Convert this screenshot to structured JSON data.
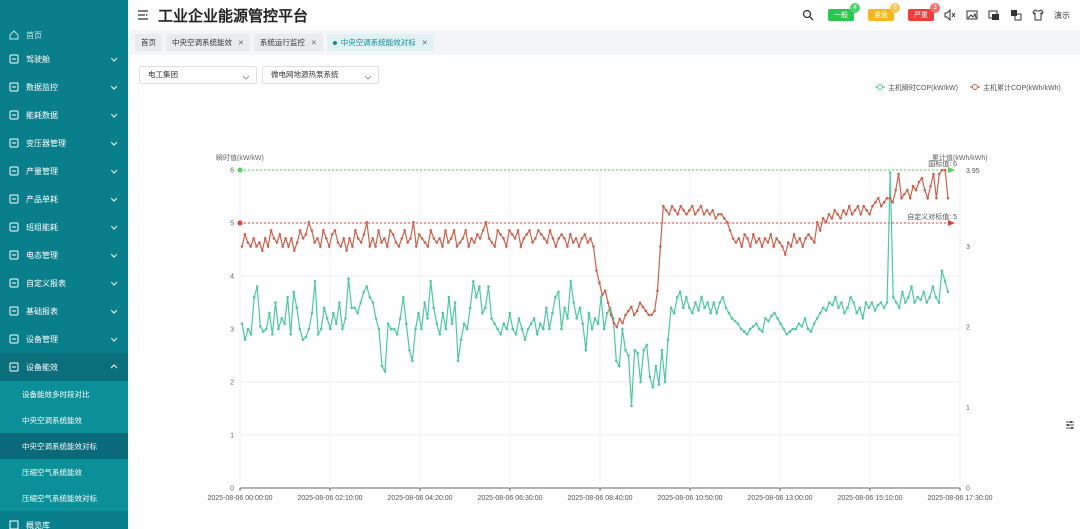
{
  "header": {
    "title": "工业企业能源管控平台",
    "badges": [
      {
        "label": "一般",
        "count": "4",
        "cls": "b-green"
      },
      {
        "label": "紧急",
        "count": "3",
        "cls": "b-yellow"
      },
      {
        "label": "严重",
        "count": "3",
        "cls": "b-red"
      }
    ],
    "demo": "演示"
  },
  "sidebar": {
    "top_partial": "首页",
    "items": [
      {
        "label": "驾驶舱",
        "icon": "monitor-icon"
      },
      {
        "label": "数据监控",
        "icon": "gauge-icon"
      },
      {
        "label": "能耗数据",
        "icon": "chart-icon"
      },
      {
        "label": "变压器管理",
        "icon": "transformer-icon"
      },
      {
        "label": "产量管理",
        "icon": "output-icon"
      },
      {
        "label": "产品单耗",
        "icon": "product-icon"
      },
      {
        "label": "班组能耗",
        "icon": "team-icon"
      },
      {
        "label": "电态管理",
        "icon": "grid-icon"
      },
      {
        "label": "自定义报表",
        "icon": "report-icon"
      },
      {
        "label": "基础报表",
        "icon": "table-icon"
      },
      {
        "label": "设备管理",
        "icon": "device-icon"
      },
      {
        "label": "设备能效",
        "icon": "efficiency-icon"
      }
    ],
    "sub_items": [
      "设备能效多时段对比",
      "中央空调系统能效",
      "中央空调系统能效对标",
      "压缩空气系统能效",
      "压缩空气系统能效对标"
    ],
    "bottom_partial": "概览库"
  },
  "tabs": [
    {
      "label": "首页",
      "closable": false
    },
    {
      "label": "中央空调系统能效",
      "closable": true
    },
    {
      "label": "系统运行监控",
      "closable": true
    },
    {
      "label": "中央空调系统能效对标",
      "closable": true
    }
  ],
  "filters": {
    "group": "电工集团",
    "system": "微电网地源热泵系统"
  },
  "chart_data": {
    "type": "line",
    "ylabel_left": "瞬时值(kW/kW)",
    "ylabel_right": "累计值(kWh/kWh)",
    "y_left_range": [
      0,
      6
    ],
    "y_left_ticks": [
      "0",
      "1",
      "2",
      "3",
      "4",
      "5",
      "6"
    ],
    "y_right_range": [
      0,
      3.95
    ],
    "y_right_ticks": [
      "0",
      "1",
      "2",
      "3"
    ],
    "x_ticks": [
      "2025-08-06 00:00:00",
      "2025-08-06 02:10:00",
      "2025-08-06 04:20:00",
      "2025-08-06 06:30:00",
      "2025-08-06 08:40:00",
      "2025-08-06 10:50:00",
      "2025-08-06 13:00:00",
      "2025-08-06 15:10:00",
      "2025-08-06 17:30:00"
    ],
    "legend": [
      "主机瞬时COP(kW/kW)",
      "主机累计COP(kWh/kWh)"
    ],
    "series_colors": [
      "#4cc9a0",
      "#d0604a"
    ],
    "markline_national": {
      "label": "国标值: 6",
      "value": 6,
      "color": "#56d35a"
    },
    "markline_custom": {
      "label": "自定义对标值: 5",
      "value": 5,
      "color": "#e0413b"
    },
    "right_max_label": "3.95",
    "instant": [
      3.1,
      2.8,
      3.0,
      2.9,
      3.6,
      3.8,
      3.05,
      2.95,
      3.0,
      3.3,
      2.9,
      3.5,
      3.0,
      3.2,
      3.1,
      3.6,
      2.9,
      3.7,
      3.4,
      3.0,
      2.8,
      2.85,
      3.0,
      3.3,
      3.9,
      2.9,
      3.0,
      3.4,
      3.2,
      3.0,
      3.3,
      3.1,
      3.5,
      3.0,
      3.2,
      3.95,
      3.4,
      3.4,
      3.3,
      3.5,
      3.7,
      3.8,
      3.6,
      3.5,
      3.2,
      3.0,
      2.3,
      2.2,
      3.1,
      3.0,
      3.0,
      2.9,
      3.2,
      3.6,
      3.1,
      2.6,
      2.4,
      3.0,
      3.3,
      3.0,
      3.5,
      3.2,
      3.9,
      3.4,
      3.1,
      2.9,
      3.3,
      3.0,
      3.6,
      3.1,
      3.5,
      2.4,
      2.8,
      3.1,
      3.0,
      3.4,
      3.9,
      3.6,
      3.8,
      3.3,
      3.4,
      3.8,
      3.2,
      3.1,
      3.0,
      2.9,
      3.1,
      3.0,
      3.3,
      3.0,
      2.9,
      3.2,
      3.0,
      2.8,
      3.0,
      3.1,
      3.2,
      2.9,
      3.1,
      3.0,
      3.4,
      3.0,
      3.3,
      3.6,
      3.7,
      3.0,
      3.4,
      3.2,
      3.9,
      3.5,
      3.2,
      3.4,
      3.1,
      2.6,
      3.3,
      3.0,
      3.2,
      3.1,
      3.6,
      3.0,
      3.3,
      3.4,
      3.2,
      2.4,
      2.3,
      3.0,
      2.6,
      2.5,
      1.55,
      2.6,
      2.55,
      2.0,
      2.6,
      2.7,
      2.1,
      1.9,
      2.3,
      1.95,
      2.6,
      2.0,
      2.8,
      3.4,
      3.3,
      3.6,
      3.7,
      3.4,
      3.6,
      3.4,
      3.3,
      3.5,
      3.35,
      3.6,
      3.4,
      3.5,
      3.3,
      3.5,
      3.3,
      3.5,
      3.6,
      3.4,
      3.3,
      3.2,
      3.15,
      3.1,
      3.0,
      2.95,
      2.9,
      3.0,
      3.05,
      3.1,
      3.0,
      2.95,
      3.2,
      3.15,
      3.25,
      3.3,
      3.2,
      3.1,
      3.0,
      2.9,
      2.95,
      3.0,
      3.0,
      3.1,
      3.05,
      3.2,
      3.0,
      2.95,
      3.1,
      3.2,
      3.3,
      3.4,
      3.35,
      3.5,
      3.45,
      3.6,
      3.4,
      3.5,
      3.3,
      3.4,
      3.6,
      3.5,
      3.3,
      3.4,
      3.2,
      3.5,
      3.4,
      3.5,
      3.35,
      3.45,
      3.5,
      3.4,
      3.5,
      5.95,
      3.6,
      3.5,
      3.4,
      3.7,
      3.5,
      3.6,
      3.8,
      3.5,
      3.6,
      3.55,
      3.7,
      3.5,
      3.6,
      3.8,
      3.6,
      3.5,
      4.1,
      3.9,
      3.7
    ],
    "cumulative": [
      3.0,
      3.15,
      3.05,
      3.0,
      3.1,
      3.0,
      3.05,
      2.95,
      3.1,
      3.0,
      3.2,
      3.1,
      3.05,
      3.15,
      3.0,
      3.1,
      3.0,
      3.1,
      2.95,
      3.05,
      3.2,
      3.1,
      3.15,
      3.3,
      3.2,
      3.05,
      3.1,
      3.0,
      3.2,
      3.1,
      3.0,
      3.15,
      3.2,
      3.05,
      3.0,
      3.1,
      2.95,
      3.1,
      3.0,
      3.2,
      3.1,
      3.05,
      3.15,
      3.3,
      3.0,
      3.1,
      3.0,
      3.2,
      3.05,
      3.1,
      3.0,
      3.2,
      3.15,
      3.05,
      3.0,
      3.1,
      3.2,
      3.05,
      3.1,
      3.3,
      3.0,
      3.15,
      3.1,
      3.05,
      3.0,
      3.2,
      3.1,
      3.05,
      3.1,
      3.0,
      3.2,
      3.05,
      3.1,
      3.2,
      3.0,
      3.05,
      3.1,
      3.2,
      3.0,
      3.1,
      3.05,
      3.15,
      3.1,
      3.2,
      3.3,
      3.1,
      3.05,
      3.0,
      3.2,
      3.15,
      3.1,
      3.0,
      3.2,
      3.15,
      3.1,
      3.2,
      3.0,
      3.1,
      3.15,
      3.2,
      3.05,
      3.1,
      3.2,
      3.15,
      3.1,
      3.05,
      3.2,
      3.1,
      3.0,
      3.1,
      3.15,
      3.1,
      3.0,
      3.15,
      3.05,
      3.1,
      3.0,
      3.1,
      3.15,
      3.05,
      3.1,
      3.0,
      2.7,
      2.55,
      2.4,
      2.45,
      2.3,
      2.15,
      2.05,
      2.0,
      2.1,
      2.05,
      2.15,
      2.2,
      2.25,
      2.15,
      2.2,
      2.3,
      2.25,
      2.2,
      2.15,
      2.15,
      2.2,
      2.45,
      3.0,
      3.5,
      3.45,
      3.4,
      3.5,
      3.45,
      3.4,
      3.5,
      3.45,
      3.4,
      3.45,
      3.5,
      3.4,
      3.45,
      3.5,
      3.4,
      3.45,
      3.4,
      3.45,
      3.35,
      3.4,
      3.4,
      3.35,
      3.3,
      3.2,
      3.1,
      3.05,
      3.1,
      3.0,
      3.15,
      3.1,
      3.0,
      3.15,
      3.05,
      3.1,
      3.0,
      3.1,
      3.05,
      3.15,
      3.0,
      3.1,
      3.05,
      3.0,
      2.9,
      3.05,
      3.0,
      3.15,
      3.05,
      3.1,
      3.0,
      3.1,
      3.15,
      3.1,
      3.05,
      3.3,
      3.2,
      3.35,
      3.3,
      3.4,
      3.35,
      3.45,
      3.4,
      3.35,
      3.45,
      3.4,
      3.5,
      3.4,
      3.45,
      3.5,
      3.4,
      3.5,
      3.45,
      3.4,
      3.5,
      3.55,
      3.6,
      3.5,
      3.55,
      3.6,
      3.6,
      3.55,
      3.7,
      3.9,
      3.6,
      3.65,
      3.7,
      3.6,
      3.75,
      3.7,
      3.8,
      3.85,
      3.7,
      3.6,
      3.75,
      3.9,
      3.6,
      3.9,
      3.95,
      3.95,
      3.6
    ]
  }
}
